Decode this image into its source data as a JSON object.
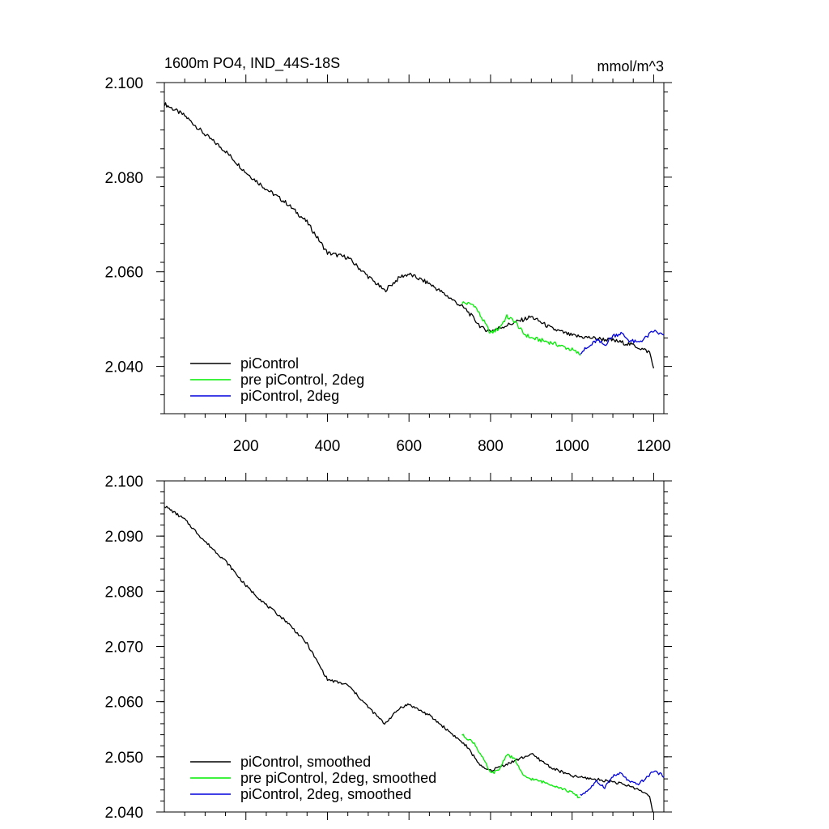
{
  "figure": {
    "title": "1600m PO4, IND_44S-18S",
    "units": "mmol/m^3"
  },
  "chart_data": [
    {
      "type": "line",
      "title": "1600m PO4, IND_44S-18S",
      "units_label": "mmol/m^3",
      "xlabel": "",
      "ylabel": "",
      "xlim": [
        0,
        1225
      ],
      "ylim": [
        2.03,
        2.1
      ],
      "x_ticks": [
        200,
        400,
        600,
        800,
        1000,
        1200
      ],
      "x_tick_labels": [
        "200",
        "400",
        "600",
        "800",
        "1000",
        "1200"
      ],
      "y_ticks": [
        2.04,
        2.06,
        2.08,
        2.1
      ],
      "y_tick_labels": [
        "2.040",
        "2.060",
        "2.080",
        "2.100"
      ],
      "legend_position": "bottom-left",
      "series": [
        {
          "name": "piControl",
          "color": "#000000",
          "x": [
            0,
            50,
            100,
            150,
            200,
            250,
            300,
            350,
            400,
            450,
            500,
            540,
            580,
            600,
            650,
            700,
            740,
            780,
            800,
            850,
            900,
            950,
            1000,
            1050,
            1100,
            1150,
            1190,
            1200
          ],
          "y": [
            2.0955,
            2.093,
            2.089,
            2.0855,
            2.081,
            2.0775,
            2.0745,
            2.0705,
            2.064,
            2.063,
            2.059,
            2.056,
            2.059,
            2.0595,
            2.0575,
            2.0545,
            2.052,
            2.048,
            2.0475,
            2.049,
            2.0505,
            2.048,
            2.0465,
            2.046,
            2.0455,
            2.0445,
            2.043,
            2.0395
          ]
        },
        {
          "name": "pre piControl, 2deg",
          "color": "#00ee00",
          "x": [
            730,
            760,
            790,
            800,
            820,
            840,
            860,
            880,
            900,
            950,
            1000,
            1020
          ],
          "y": [
            2.0535,
            2.053,
            2.0485,
            2.047,
            2.048,
            2.0505,
            2.0495,
            2.047,
            2.046,
            2.045,
            2.0435,
            2.0425
          ]
        },
        {
          "name": "piControl, 2deg",
          "color": "#0000dd",
          "x": [
            1020,
            1040,
            1060,
            1080,
            1100,
            1120,
            1140,
            1160,
            1180,
            1200,
            1225
          ],
          "y": [
            2.043,
            2.044,
            2.0455,
            2.0445,
            2.0465,
            2.047,
            2.0455,
            2.045,
            2.046,
            2.0475,
            2.0465
          ]
        }
      ]
    },
    {
      "type": "line",
      "title": "",
      "xlabel": "",
      "ylabel": "",
      "xlim": [
        0,
        1225
      ],
      "ylim": [
        2.04,
        2.1
      ],
      "x_ticks": [
        200,
        400,
        600,
        800,
        1000,
        1200
      ],
      "x_tick_labels": [],
      "y_ticks": [
        2.04,
        2.05,
        2.06,
        2.07,
        2.08,
        2.09,
        2.1
      ],
      "y_tick_labels": [
        "2.040",
        "2.050",
        "2.060",
        "2.070",
        "2.080",
        "2.090",
        "2.100"
      ],
      "legend_position": "bottom-left",
      "series": [
        {
          "name": "piControl, smoothed",
          "color": "#000000",
          "x": [
            0,
            50,
            100,
            150,
            200,
            250,
            300,
            350,
            400,
            450,
            500,
            540,
            580,
            600,
            650,
            700,
            740,
            780,
            800,
            850,
            900,
            950,
            1000,
            1050,
            1100,
            1150,
            1190,
            1200
          ],
          "y": [
            2.0955,
            2.093,
            2.089,
            2.0855,
            2.081,
            2.0775,
            2.0745,
            2.0705,
            2.064,
            2.063,
            2.059,
            2.056,
            2.059,
            2.0595,
            2.0575,
            2.0545,
            2.052,
            2.048,
            2.0475,
            2.049,
            2.0505,
            2.048,
            2.0465,
            2.046,
            2.0455,
            2.0445,
            2.043,
            2.0395
          ]
        },
        {
          "name": "pre piControl, 2deg, smoothed",
          "color": "#00ee00",
          "x": [
            730,
            760,
            790,
            800,
            820,
            840,
            860,
            880,
            900,
            950,
            1000,
            1020
          ],
          "y": [
            2.054,
            2.0525,
            2.0485,
            2.047,
            2.0475,
            2.0505,
            2.0495,
            2.0465,
            2.046,
            2.045,
            2.0435,
            2.0425
          ]
        },
        {
          "name": "piControl, 2deg, smoothed",
          "color": "#0000dd",
          "x": [
            1020,
            1040,
            1060,
            1080,
            1100,
            1120,
            1140,
            1160,
            1180,
            1200,
            1225
          ],
          "y": [
            2.043,
            2.044,
            2.0455,
            2.0445,
            2.0465,
            2.047,
            2.0455,
            2.045,
            2.046,
            2.0475,
            2.0465
          ]
        }
      ]
    }
  ]
}
